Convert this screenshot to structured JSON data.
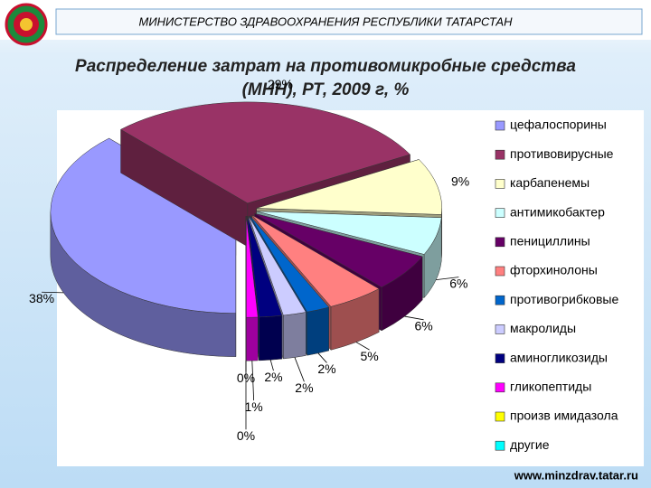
{
  "header": {
    "title": "МИНИСТЕРСТВО ЗДРАВООХРАНЕНИЯ РЕСПУБЛИКИ ТАТАРСТАН"
  },
  "footer": {
    "url": "www.minzdrav.tatar.ru"
  },
  "chart_data": {
    "type": "pie",
    "title": "Распределение затрат на противомикробные средства (МНН), РТ, 2009 г, %",
    "categories": [
      "цефалоспорины",
      "противовирусные",
      "карбапенемы",
      "антимикобактер",
      "пенициллины",
      "фторхинолоны",
      "противогрибковые",
      "макролиды",
      "аминогликозиды",
      "гликопептиды",
      "произв имидазола",
      "другие"
    ],
    "values": [
      38,
      29,
      9,
      6,
      6,
      5,
      2,
      2,
      2,
      1,
      0,
      0
    ],
    "value_labels": [
      "38%",
      "29%",
      "9%",
      "6%",
      "6%",
      "5%",
      "2%",
      "2%",
      "2%",
      "1%",
      "0%",
      "0%"
    ],
    "colors": [
      "#9999ff",
      "#993366",
      "#ffffcc",
      "#ccffff",
      "#660066",
      "#ff8080",
      "#0066cc",
      "#ccccff",
      "#000080",
      "#ff00ff",
      "#ffff00",
      "#00ffff"
    ],
    "legend": "right"
  }
}
